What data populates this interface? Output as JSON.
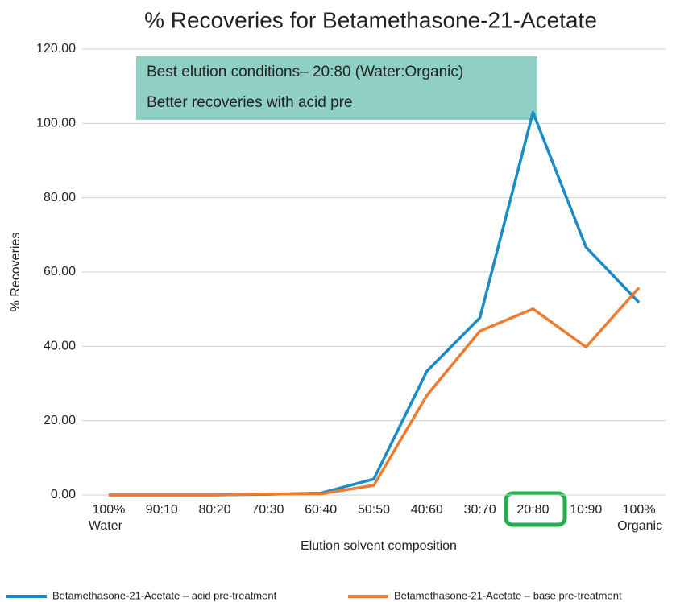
{
  "chart_data": {
    "type": "line",
    "title": "% Recoveries for Betamethasone-21-Acetate",
    "x_label": "Elution solvent composition",
    "y_label": "% Recoveries",
    "annotations": [
      "Best elution conditions– 20:80 (Water:Organic)",
      "Better recoveries with acid pre"
    ],
    "categories": [
      "100% Water",
      "90:10",
      "80:20",
      "70:30",
      "60:40",
      "50:50",
      "40:60",
      "30:70",
      "20:80",
      "10:90",
      "100% Organic"
    ],
    "series": [
      {
        "name": "Betamethasone-21-Acetate – acid pre-treatment",
        "color": "#1a8bc7",
        "values": [
          0,
          0,
          0,
          0.2,
          0.5,
          4.3,
          33.3,
          47.7,
          103.0,
          66.7,
          51.8
        ]
      },
      {
        "name": "Betamethasone-21-Acetate – base pre-treatment",
        "color": "#ee7b30",
        "values": [
          0,
          0,
          0,
          0.3,
          0.3,
          2.6,
          26.8,
          44.1,
          50.1,
          39.8,
          55.8
        ]
      }
    ],
    "ylim": [
      0,
      120
    ],
    "yticks": [
      {
        "value": 0,
        "label": "0.00"
      },
      {
        "value": 20,
        "label": "20.00"
      },
      {
        "value": 40,
        "label": "40.00"
      },
      {
        "value": 60,
        "label": "60.00"
      },
      {
        "value": 80,
        "label": "80.00"
      },
      {
        "value": 100,
        "label": "100.00"
      },
      {
        "value": 120,
        "label": "120.00"
      }
    ],
    "grid": true,
    "legend": "bottom"
  }
}
